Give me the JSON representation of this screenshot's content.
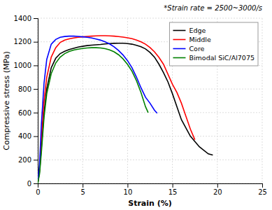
{
  "chart_data": {
    "type": "line",
    "annotation": "*Strain rate = 2500~3000/s",
    "xlabel": "Strain (%)",
    "ylabel": "Compressive stress (MPa)",
    "xlim": [
      0,
      25
    ],
    "ylim": [
      0,
      1400
    ],
    "xticks": [
      0,
      5,
      10,
      15,
      20,
      25
    ],
    "yticks": [
      0,
      200,
      400,
      600,
      800,
      1000,
      1200,
      1400
    ],
    "grid": true,
    "legend": "upper right",
    "series": [
      {
        "name": "Edge",
        "color": "black",
        "x": [
          0,
          0.2,
          0.4,
          0.7,
          1.0,
          1.5,
          2.0,
          2.5,
          3.0,
          3.5,
          4.0,
          4.5,
          5.0,
          5.5,
          6.0,
          6.5,
          7.0,
          7.5,
          8.0,
          8.5,
          9.0,
          9.5,
          10.0,
          10.5,
          11.0,
          11.5,
          12.0,
          12.5,
          13.0,
          13.5,
          14.0,
          14.5,
          15.0,
          15.5,
          16.0,
          17.0,
          18.0,
          19.0,
          19.5
        ],
        "values": [
          0,
          100,
          300,
          600,
          800,
          980,
          1060,
          1100,
          1120,
          1135,
          1145,
          1155,
          1162,
          1168,
          1172,
          1175,
          1178,
          1182,
          1185,
          1187,
          1188,
          1188,
          1185,
          1180,
          1170,
          1158,
          1140,
          1110,
          1070,
          1010,
          940,
          860,
          760,
          650,
          540,
          400,
          310,
          250,
          240
        ]
      },
      {
        "name": "Middle",
        "color": "red",
        "x": [
          0,
          0.2,
          0.4,
          0.7,
          1.0,
          1.5,
          2.0,
          2.5,
          3.0,
          3.5,
          4.0,
          4.5,
          5.0,
          5.5,
          6.0,
          6.5,
          7.0,
          7.5,
          8.0,
          8.5,
          9.0,
          9.5,
          10.0,
          10.5,
          11.0,
          11.5,
          12.0,
          12.5,
          13.0,
          13.5,
          14.0,
          15.0,
          15.5,
          16.0,
          16.5,
          17.0,
          17.5
        ],
        "values": [
          0,
          120,
          380,
          700,
          900,
          1070,
          1150,
          1195,
          1215,
          1225,
          1232,
          1238,
          1242,
          1246,
          1248,
          1250,
          1252,
          1252,
          1250,
          1248,
          1244,
          1240,
          1234,
          1226,
          1215,
          1200,
          1180,
          1152,
          1115,
          1068,
          1010,
          840,
          770,
          680,
          570,
          460,
          370
        ]
      },
      {
        "name": "Core",
        "color": "blue",
        "x": [
          0,
          0.2,
          0.4,
          0.7,
          1.0,
          1.5,
          2.0,
          2.5,
          3.0,
          3.5,
          4.0,
          4.5,
          5.0,
          5.5,
          6.0,
          6.5,
          7.0,
          7.5,
          8.0,
          8.5,
          9.0,
          9.5,
          10.0,
          10.5,
          11.0,
          11.5,
          12.0,
          12.5,
          13.0,
          13.3
        ],
        "values": [
          0,
          160,
          500,
          850,
          1050,
          1180,
          1220,
          1238,
          1245,
          1248,
          1248,
          1246,
          1242,
          1238,
          1232,
          1224,
          1214,
          1200,
          1182,
          1158,
          1126,
          1088,
          1040,
          980,
          900,
          810,
          730,
          680,
          620,
          595
        ]
      },
      {
        "name": "Bimodal SiC/Al7075",
        "color": "green",
        "x": [
          0,
          0.2,
          0.4,
          0.7,
          1.0,
          1.5,
          2.0,
          2.5,
          3.0,
          3.5,
          4.0,
          4.5,
          5.0,
          5.5,
          6.0,
          6.5,
          7.0,
          7.5,
          8.0,
          8.5,
          9.0,
          9.5,
          10.0,
          10.5,
          11.0,
          11.5,
          12.0,
          12.3
        ],
        "values": [
          0,
          80,
          260,
          560,
          760,
          930,
          1020,
          1070,
          1100,
          1118,
          1130,
          1138,
          1143,
          1148,
          1150,
          1150,
          1148,
          1142,
          1132,
          1115,
          1090,
          1055,
          1008,
          950,
          870,
          770,
          650,
          600
        ]
      }
    ]
  }
}
